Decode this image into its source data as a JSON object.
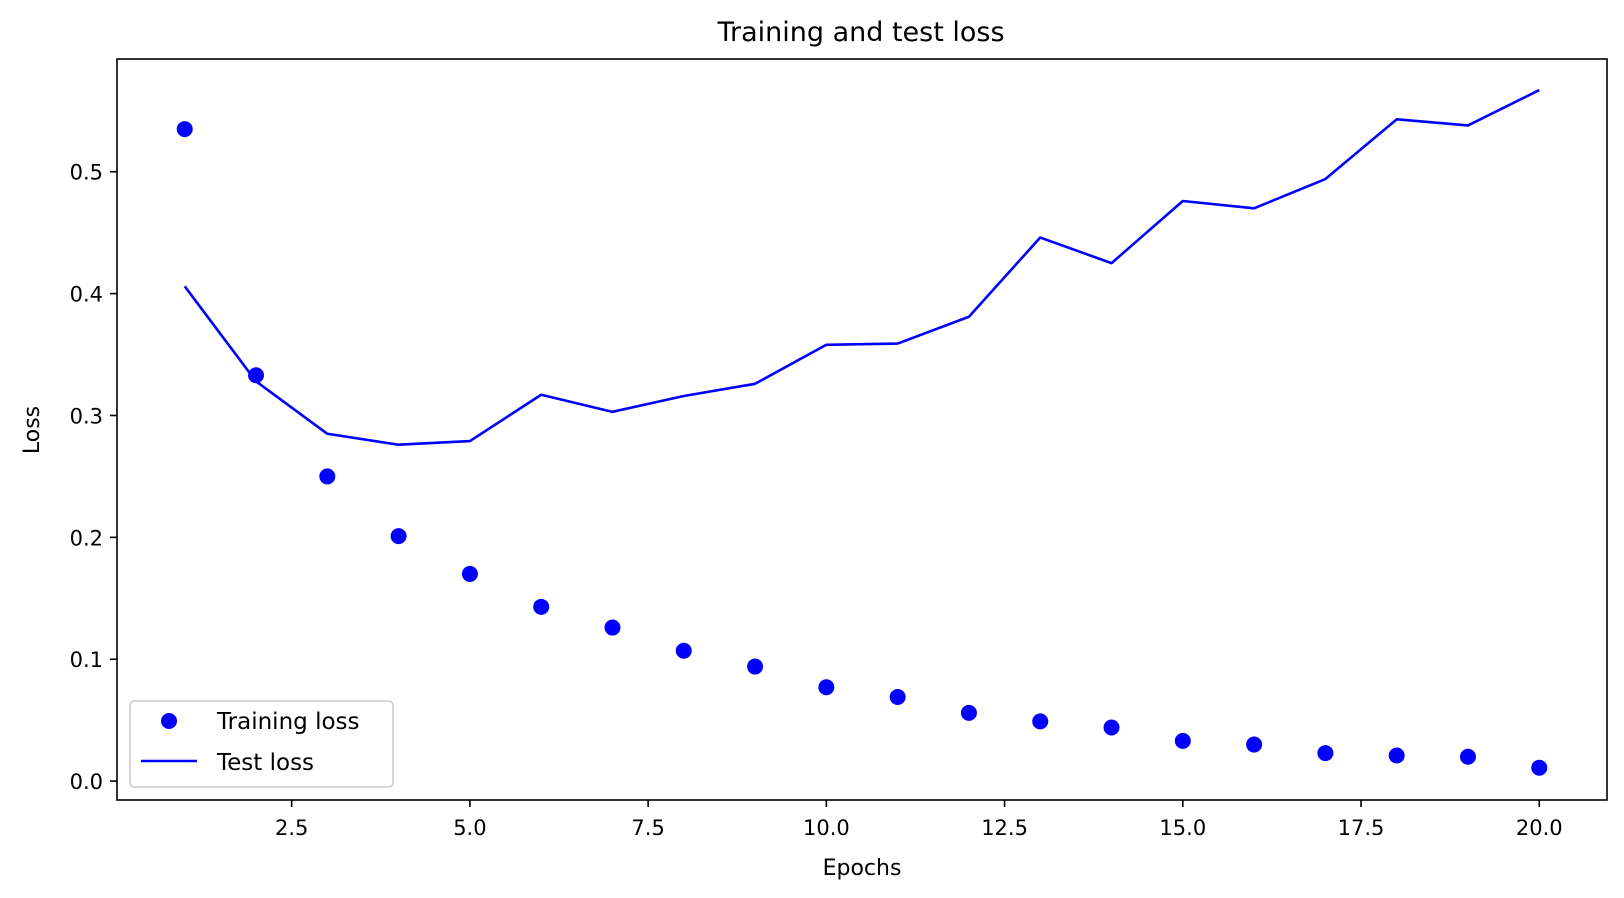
{
  "chart_data": {
    "type": "line",
    "title": "Training and test loss",
    "xlabel": "Epochs",
    "ylabel": "Loss",
    "xlim": [
      0.05,
      20.95
    ],
    "ylim": [
      -0.0155,
      0.5925
    ],
    "xticks": [
      2.5,
      5.0,
      7.5,
      10.0,
      12.5,
      15.0,
      17.5,
      20.0
    ],
    "xtick_labels": [
      "2.5",
      "5.0",
      "7.5",
      "10.0",
      "12.5",
      "15.0",
      "17.5",
      "20.0"
    ],
    "yticks": [
      0.0,
      0.1,
      0.2,
      0.3,
      0.4,
      0.5
    ],
    "ytick_labels": [
      "0.0",
      "0.1",
      "0.2",
      "0.3",
      "0.4",
      "0.5"
    ],
    "grid": false,
    "legend_position": "lower-left",
    "x": [
      1,
      2,
      3,
      4,
      5,
      6,
      7,
      8,
      9,
      10,
      11,
      12,
      13,
      14,
      15,
      16,
      17,
      18,
      19,
      20
    ],
    "series": [
      {
        "name": "Training loss",
        "style": "markers",
        "color": "#0000ff",
        "values": [
          0.535,
          0.333,
          0.25,
          0.201,
          0.17,
          0.143,
          0.126,
          0.107,
          0.094,
          0.077,
          0.069,
          0.056,
          0.049,
          0.044,
          0.033,
          0.03,
          0.023,
          0.021,
          0.02,
          0.011
        ]
      },
      {
        "name": "Test loss",
        "style": "line",
        "color": "#0000ff",
        "values": [
          0.406,
          0.328,
          0.285,
          0.276,
          0.279,
          0.317,
          0.303,
          0.316,
          0.326,
          0.358,
          0.359,
          0.381,
          0.446,
          0.425,
          0.476,
          0.47,
          0.494,
          0.543,
          0.538,
          0.567
        ]
      }
    ]
  }
}
